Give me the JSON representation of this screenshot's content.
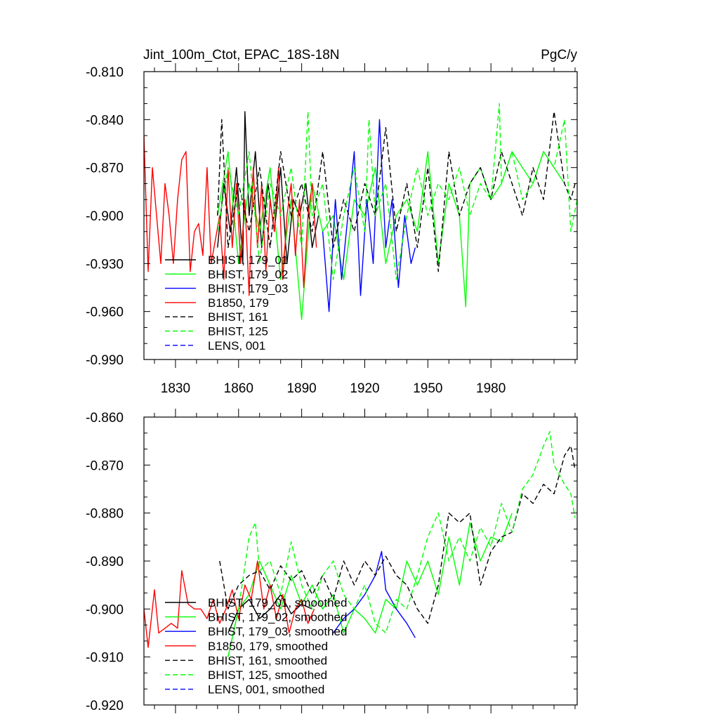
{
  "figure": {
    "title_left": "Jint_100m_Ctot, EPAC_18S-18N",
    "title_right": "PgC/y"
  },
  "colors": {
    "black": "#000000",
    "green": "#00ff00",
    "blue": "#0000ff",
    "red": "#ff0000"
  },
  "chart_data": [
    {
      "type": "line",
      "panel": "top",
      "xlim": [
        1815,
        2021
      ],
      "ylim": [
        -0.99,
        -0.81
      ],
      "xticks": [
        1830,
        1860,
        1890,
        1920,
        1950,
        1980
      ],
      "yticks": [
        -0.81,
        -0.84,
        -0.87,
        -0.9,
        -0.93,
        -0.96,
        -0.99
      ],
      "ytick_labels": [
        "-0.810",
        "-0.840",
        "-0.870",
        "-0.900",
        "-0.930",
        "-0.960",
        "-0.990"
      ],
      "xtick_labels": [
        "1830",
        "1860",
        "1890",
        "1920",
        "1950",
        "1980"
      ],
      "legend_position": "bottom-left",
      "series": [
        {
          "name": "BHIST, 179_01",
          "color": "black",
          "dash": "solid",
          "x": [
            1850,
            1853,
            1856,
            1859,
            1862,
            1863,
            1865,
            1868,
            1871,
            1874,
            1877,
            1880,
            1883,
            1886,
            1889,
            1892,
            1895,
            1898
          ],
          "y": [
            -0.92,
            -0.88,
            -0.91,
            -0.87,
            -0.93,
            -0.835,
            -0.9,
            -0.86,
            -0.92,
            -0.88,
            -0.91,
            -0.87,
            -0.93,
            -0.89,
            -0.9,
            -0.88,
            -0.92,
            -0.9
          ]
        },
        {
          "name": "BHIST, 179_02",
          "color": "green",
          "dash": "solid",
          "x": [
            1850,
            1855,
            1860,
            1865,
            1870,
            1875,
            1880,
            1885,
            1890,
            1895,
            1900,
            1905,
            1910,
            1915,
            1920,
            1925,
            1930,
            1935,
            1940,
            1945,
            1950,
            1955,
            1960,
            1965,
            1968,
            1970,
            1975,
            1980,
            1985,
            1990,
            1995,
            2000,
            2005,
            2010,
            2015
          ],
          "y": [
            -0.9,
            -0.86,
            -0.93,
            -0.88,
            -0.91,
            -0.87,
            -0.94,
            -0.89,
            -0.965,
            -0.88,
            -0.91,
            -0.9,
            -0.94,
            -0.89,
            -0.9,
            -0.87,
            -0.93,
            -0.9,
            -0.89,
            -0.91,
            -0.86,
            -0.93,
            -0.88,
            -0.9,
            -0.957,
            -0.88,
            -0.87,
            -0.89,
            -0.88,
            -0.86,
            -0.87,
            -0.88,
            -0.86,
            -0.87,
            -0.88
          ]
        },
        {
          "name": "BHIST, 179_03",
          "color": "blue",
          "dash": "solid",
          "x": [
            1900,
            1903,
            1906,
            1909,
            1912,
            1915,
            1918,
            1921,
            1924,
            1927,
            1930,
            1933,
            1936,
            1939,
            1942,
            1944
          ],
          "y": [
            -0.91,
            -0.96,
            -0.89,
            -0.94,
            -0.9,
            -0.86,
            -0.95,
            -0.89,
            -0.93,
            -0.84,
            -0.92,
            -0.89,
            -0.945,
            -0.9,
            -0.93,
            -0.92
          ]
        },
        {
          "name": "B1850, 179",
          "color": "red",
          "dash": "solid",
          "x": [
            1815,
            1817,
            1819,
            1821,
            1823,
            1825,
            1827,
            1829,
            1831,
            1833,
            1835,
            1837,
            1839,
            1841,
            1843,
            1845,
            1847,
            1849,
            1851,
            1853,
            1855,
            1857,
            1859,
            1861,
            1863,
            1865,
            1867,
            1869,
            1871,
            1873,
            1875,
            1877,
            1879,
            1881,
            1883,
            1885,
            1887,
            1889,
            1891,
            1893,
            1895,
            1897
          ],
          "y": [
            -0.85,
            -0.935,
            -0.87,
            -0.9,
            -0.93,
            -0.88,
            -0.9,
            -0.93,
            -0.89,
            -0.865,
            -0.86,
            -0.935,
            -0.91,
            -0.905,
            -0.925,
            -0.87,
            -0.93,
            -0.915,
            -0.9,
            -0.94,
            -0.87,
            -0.92,
            -0.88,
            -0.93,
            -0.89,
            -0.95,
            -0.87,
            -0.92,
            -0.88,
            -0.935,
            -0.89,
            -0.91,
            -0.87,
            -0.94,
            -0.9,
            -0.88,
            -0.925,
            -0.89,
            -0.945,
            -0.9,
            -0.88,
            -0.92
          ]
        },
        {
          "name": "BHIST, 161",
          "color": "black",
          "dash": "dashed",
          "x": [
            1850,
            1852,
            1855,
            1860,
            1865,
            1870,
            1875,
            1880,
            1885,
            1890,
            1895,
            1900,
            1905,
            1910,
            1915,
            1920,
            1925,
            1930,
            1935,
            1940,
            1945,
            1950,
            1955,
            1960,
            1965,
            1970,
            1975,
            1980,
            1985,
            1990,
            1995,
            2000,
            2005,
            2010,
            2015,
            2018,
            2020
          ],
          "y": [
            -0.9,
            -0.84,
            -0.92,
            -0.88,
            -0.91,
            -0.87,
            -0.92,
            -0.86,
            -0.9,
            -0.88,
            -0.91,
            -0.86,
            -0.92,
            -0.89,
            -0.91,
            -0.88,
            -0.9,
            -0.845,
            -0.91,
            -0.88,
            -0.92,
            -0.87,
            -0.935,
            -0.86,
            -0.9,
            -0.88,
            -0.87,
            -0.89,
            -0.86,
            -0.88,
            -0.9,
            -0.87,
            -0.89,
            -0.835,
            -0.88,
            -0.89,
            -0.88
          ]
        },
        {
          "name": "BHIST, 125",
          "color": "green",
          "dash": "dashed",
          "x": [
            1850,
            1855,
            1860,
            1865,
            1870,
            1875,
            1880,
            1885,
            1890,
            1893,
            1895,
            1900,
            1905,
            1910,
            1915,
            1920,
            1922,
            1925,
            1930,
            1935,
            1940,
            1945,
            1950,
            1955,
            1960,
            1965,
            1970,
            1975,
            1980,
            1984,
            1985,
            1990,
            1995,
            2000,
            2005,
            2010,
            2015,
            2018,
            2021
          ],
          "y": [
            -0.91,
            -0.87,
            -0.9,
            -0.86,
            -0.93,
            -0.88,
            -0.9,
            -0.87,
            -0.92,
            -0.835,
            -0.9,
            -0.88,
            -0.94,
            -0.9,
            -0.87,
            -0.91,
            -0.84,
            -0.9,
            -0.88,
            -0.94,
            -0.9,
            -0.87,
            -0.9,
            -0.88,
            -0.89,
            -0.87,
            -0.9,
            -0.88,
            -0.89,
            -0.83,
            -0.88,
            -0.86,
            -0.89,
            -0.88,
            -0.86,
            -0.87,
            -0.84,
            -0.91,
            -0.89
          ]
        },
        {
          "name": "LENS, 001",
          "color": "blue",
          "dash": "dashed",
          "x": [],
          "y": []
        }
      ]
    },
    {
      "type": "line",
      "panel": "bottom",
      "xlim": [
        1815,
        2021
      ],
      "ylim": [
        -0.92,
        -0.86
      ],
      "xticks": [
        1830,
        1860,
        1890,
        1920,
        1950,
        1980
      ],
      "yticks": [
        -0.86,
        -0.87,
        -0.88,
        -0.89,
        -0.9,
        -0.91,
        -0.92
      ],
      "ytick_labels": [
        "-0.860",
        "-0.870",
        "-0.880",
        "-0.890",
        "-0.900",
        "-0.910",
        "-0.920"
      ],
      "legend_position": "bottom-left",
      "series": [
        {
          "name": "BHIST, 179_01, smoothed",
          "color": "black",
          "dash": "solid",
          "x": [
            1855,
            1860,
            1865,
            1870,
            1875,
            1880,
            1885,
            1890,
            1895
          ],
          "y": [
            -0.905,
            -0.9,
            -0.898,
            -0.902,
            -0.9,
            -0.897,
            -0.901,
            -0.899,
            -0.9
          ]
        },
        {
          "name": "BHIST, 179_02, smoothed",
          "color": "green",
          "dash": "solid",
          "x": [
            1855,
            1860,
            1865,
            1870,
            1875,
            1880,
            1885,
            1890,
            1895,
            1900,
            1905,
            1910,
            1915,
            1920,
            1925,
            1930,
            1935,
            1940,
            1945,
            1950,
            1955,
            1960,
            1965,
            1970,
            1975,
            1980,
            1985,
            1990
          ],
          "y": [
            -0.91,
            -0.9,
            -0.897,
            -0.89,
            -0.895,
            -0.9,
            -0.893,
            -0.899,
            -0.895,
            -0.9,
            -0.897,
            -0.905,
            -0.9,
            -0.902,
            -0.905,
            -0.898,
            -0.9,
            -0.89,
            -0.895,
            -0.89,
            -0.897,
            -0.885,
            -0.895,
            -0.882,
            -0.89,
            -0.885,
            -0.886,
            -0.88
          ]
        },
        {
          "name": "BHIST, 179_03, smoothed",
          "color": "blue",
          "dash": "solid",
          "x": [
            1905,
            1910,
            1915,
            1920,
            1925,
            1928,
            1930,
            1935,
            1940,
            1944
          ],
          "y": [
            -0.905,
            -0.902,
            -0.9,
            -0.897,
            -0.893,
            -0.888,
            -0.896,
            -0.9,
            -0.903,
            -0.906
          ]
        },
        {
          "name": "B1850, 179, smoothed",
          "color": "red",
          "dash": "solid",
          "x": [
            1815,
            1817,
            1820,
            1822,
            1825,
            1828,
            1831,
            1833,
            1836,
            1839,
            1842,
            1845,
            1848,
            1851,
            1854,
            1857,
            1860,
            1863,
            1866,
            1869,
            1872,
            1875,
            1878,
            1881,
            1884,
            1887,
            1890,
            1893,
            1896
          ],
          "y": [
            -0.9,
            -0.908,
            -0.896,
            -0.905,
            -0.904,
            -0.903,
            -0.904,
            -0.892,
            -0.899,
            -0.9,
            -0.9,
            -0.902,
            -0.898,
            -0.903,
            -0.9,
            -0.896,
            -0.902,
            -0.895,
            -0.898,
            -0.89,
            -0.9,
            -0.895,
            -0.902,
            -0.897,
            -0.905,
            -0.9,
            -0.898,
            -0.903,
            -0.9
          ]
        },
        {
          "name": "BHIST, 161, smoothed",
          "color": "black",
          "dash": "dashed",
          "x": [
            1851,
            1855,
            1860,
            1865,
            1870,
            1875,
            1880,
            1885,
            1890,
            1895,
            1900,
            1905,
            1910,
            1915,
            1920,
            1925,
            1930,
            1935,
            1940,
            1945,
            1950,
            1955,
            1960,
            1965,
            1970,
            1975,
            1980,
            1985,
            1990,
            1995,
            2000,
            2005,
            2010,
            2015,
            2018,
            2020
          ],
          "y": [
            -0.89,
            -0.9,
            -0.895,
            -0.893,
            -0.892,
            -0.896,
            -0.891,
            -0.894,
            -0.892,
            -0.897,
            -0.893,
            -0.898,
            -0.89,
            -0.895,
            -0.89,
            -0.893,
            -0.889,
            -0.893,
            -0.895,
            -0.9,
            -0.903,
            -0.895,
            -0.88,
            -0.882,
            -0.88,
            -0.895,
            -0.888,
            -0.885,
            -0.884,
            -0.876,
            -0.878,
            -0.874,
            -0.876,
            -0.868,
            -0.866,
            -0.871
          ]
        },
        {
          "name": "BHIST, 125, smoothed",
          "color": "green",
          "dash": "dashed",
          "x": [
            1855,
            1860,
            1865,
            1868,
            1870,
            1875,
            1880,
            1885,
            1890,
            1895,
            1900,
            1905,
            1910,
            1915,
            1920,
            1925,
            1930,
            1935,
            1940,
            1945,
            1950,
            1955,
            1960,
            1965,
            1970,
            1975,
            1980,
            1985,
            1990,
            1995,
            2000,
            2005,
            2008,
            2010,
            2015,
            2018,
            2020
          ],
          "y": [
            -0.91,
            -0.9,
            -0.885,
            -0.882,
            -0.892,
            -0.89,
            -0.897,
            -0.886,
            -0.895,
            -0.9,
            -0.893,
            -0.89,
            -0.897,
            -0.9,
            -0.895,
            -0.903,
            -0.905,
            -0.898,
            -0.9,
            -0.893,
            -0.885,
            -0.88,
            -0.89,
            -0.885,
            -0.89,
            -0.883,
            -0.887,
            -0.878,
            -0.884,
            -0.875,
            -0.872,
            -0.866,
            -0.863,
            -0.87,
            -0.874,
            -0.876,
            -0.881
          ]
        },
        {
          "name": "LENS, 001, smoothed",
          "color": "blue",
          "dash": "dashed",
          "x": [],
          "y": []
        }
      ]
    }
  ]
}
